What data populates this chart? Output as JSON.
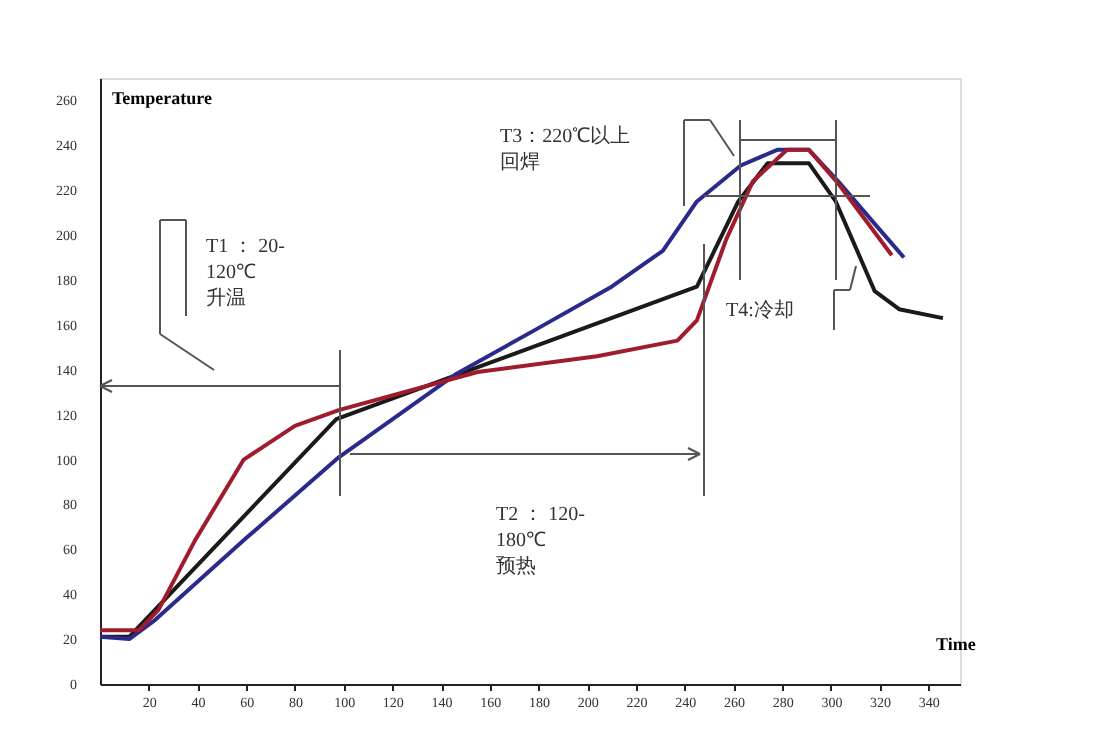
{
  "chart_data": {
    "type": "line",
    "xlabel": "Time",
    "ylabel": "Temperature",
    "xlim": [
      0,
      353
    ],
    "ylim": [
      0,
      270
    ],
    "xticks": [
      20,
      40,
      60,
      80,
      100,
      120,
      140,
      160,
      180,
      200,
      220,
      240,
      260,
      280,
      300,
      320,
      340
    ],
    "yticks": [
      0,
      20,
      40,
      60,
      80,
      100,
      120,
      140,
      160,
      180,
      200,
      220,
      240,
      260
    ],
    "grid": false,
    "marker": "none",
    "line_style": "solid",
    "series": [
      {
        "color": "#1a1a1a",
        "x": [
          0,
          12,
          97,
          245,
          262,
          274,
          291,
          302,
          318,
          328,
          346
        ],
        "values": [
          21,
          21,
          118,
          177,
          215,
          232,
          232,
          215,
          175,
          167,
          163
        ]
      },
      {
        "color": "#2b2a8c",
        "x": [
          0,
          12,
          22,
          60,
          98,
          146,
          179,
          210,
          231,
          245,
          263,
          278,
          291,
          303,
          318,
          330
        ],
        "values": [
          21,
          20,
          28,
          65,
          101,
          138,
          158,
          177,
          193,
          215,
          231,
          238,
          238,
          224,
          205,
          190
        ]
      },
      {
        "color": "#a01c2c",
        "x": [
          0,
          16,
          24,
          39,
          59,
          80,
          98,
          155,
          204,
          237,
          245,
          257,
          268,
          282,
          291,
          303,
          325
        ],
        "values": [
          24,
          24,
          33,
          64,
          100,
          115,
          122,
          139,
          146,
          153,
          162,
          198,
          224,
          238,
          238,
          223,
          191
        ]
      }
    ],
    "annotations": [
      "T1 ： 20-120℃升温",
      "T2 ： 120-180℃预热",
      "T3：220℃以上回焊",
      "T4:冷却"
    ]
  }
}
